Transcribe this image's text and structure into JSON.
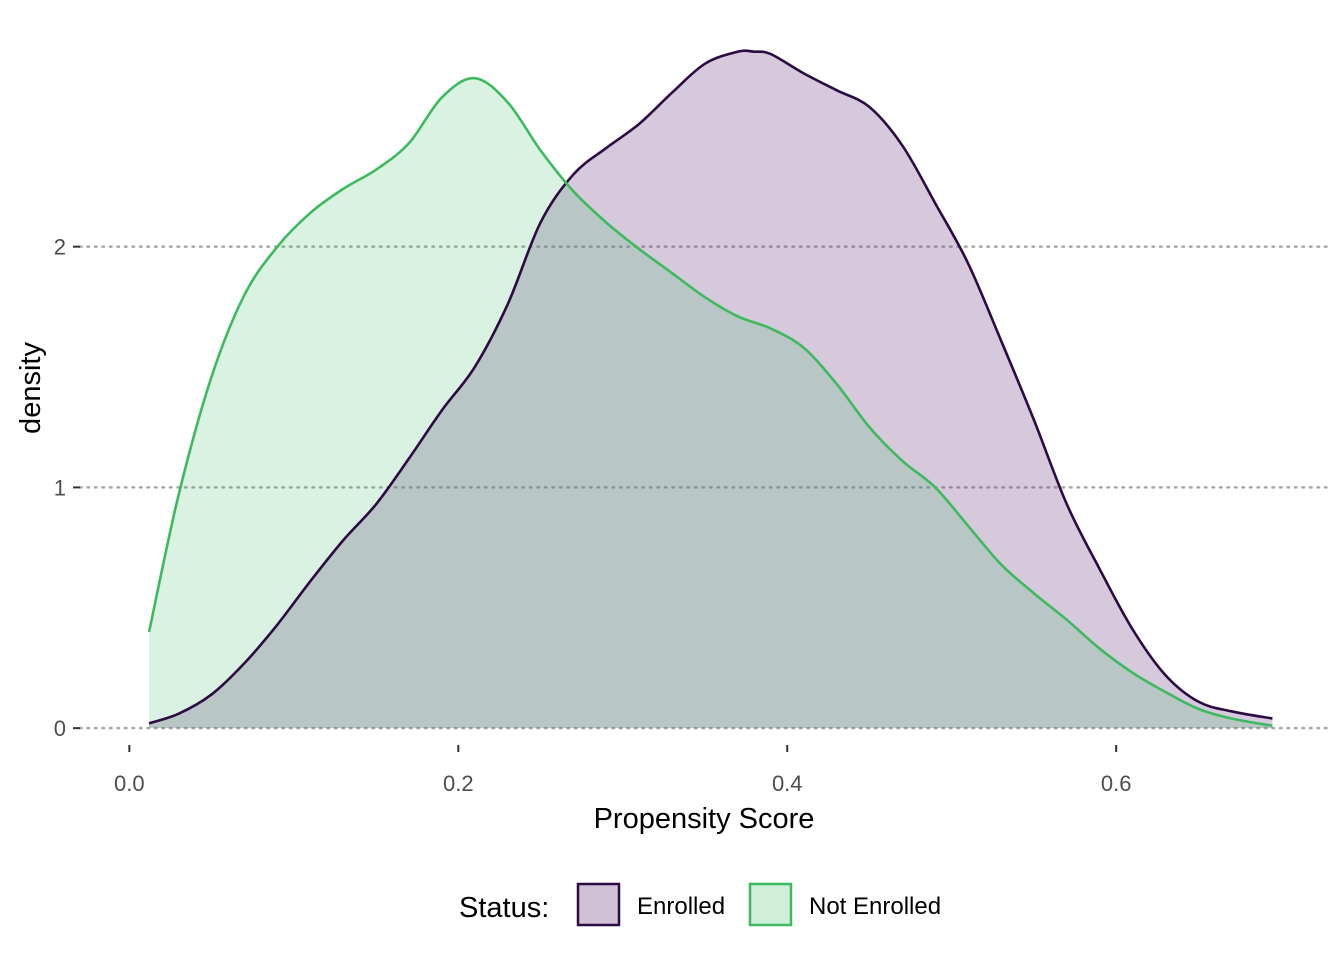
{
  "chart_data": {
    "type": "area",
    "xlabel": "Propensity Score",
    "ylabel": "density",
    "xlim": [
      -0.03,
      0.73
    ],
    "ylim": [
      -0.07,
      2.9
    ],
    "x_ticks": [
      {
        "value": 0.0,
        "label": "0.0"
      },
      {
        "value": 0.2,
        "label": "0.2"
      },
      {
        "value": 0.4,
        "label": "0.4"
      },
      {
        "value": 0.6,
        "label": "0.6"
      }
    ],
    "y_ticks": [
      {
        "value": 0,
        "label": "0"
      },
      {
        "value": 1,
        "label": "1"
      },
      {
        "value": 2,
        "label": "2"
      }
    ],
    "grid": "horizontal dotted",
    "legend": {
      "title": "Status:",
      "position": "bottom",
      "entries": [
        "Enrolled",
        "Not Enrolled"
      ]
    },
    "series": [
      {
        "name": "Enrolled",
        "fill": "#7a4d8c",
        "fill_opacity": 0.3,
        "line": "#2d0a44",
        "x": [
          0.012,
          0.03,
          0.05,
          0.07,
          0.09,
          0.11,
          0.13,
          0.15,
          0.17,
          0.19,
          0.21,
          0.23,
          0.25,
          0.27,
          0.29,
          0.31,
          0.33,
          0.35,
          0.37,
          0.38,
          0.39,
          0.41,
          0.43,
          0.45,
          0.47,
          0.49,
          0.51,
          0.53,
          0.55,
          0.57,
          0.59,
          0.61,
          0.63,
          0.65,
          0.67,
          0.695
        ],
        "y": [
          0.02,
          0.06,
          0.14,
          0.27,
          0.43,
          0.61,
          0.78,
          0.93,
          1.12,
          1.32,
          1.5,
          1.76,
          2.1,
          2.3,
          2.41,
          2.51,
          2.64,
          2.76,
          2.81,
          2.81,
          2.8,
          2.72,
          2.65,
          2.58,
          2.42,
          2.18,
          1.93,
          1.61,
          1.28,
          0.93,
          0.66,
          0.41,
          0.22,
          0.11,
          0.07,
          0.04
        ]
      },
      {
        "name": "Not Enrolled",
        "fill": "#3fbf6e",
        "fill_opacity": 0.2,
        "line": "#3dba5e",
        "x": [
          0.012,
          0.03,
          0.05,
          0.07,
          0.09,
          0.11,
          0.13,
          0.15,
          0.17,
          0.19,
          0.21,
          0.23,
          0.25,
          0.27,
          0.29,
          0.31,
          0.33,
          0.35,
          0.37,
          0.39,
          0.41,
          0.43,
          0.45,
          0.47,
          0.49,
          0.51,
          0.53,
          0.55,
          0.57,
          0.59,
          0.61,
          0.63,
          0.65,
          0.67,
          0.695
        ],
        "y": [
          0.4,
          0.97,
          1.46,
          1.8,
          2.0,
          2.14,
          2.24,
          2.32,
          2.43,
          2.62,
          2.7,
          2.6,
          2.4,
          2.23,
          2.1,
          1.99,
          1.89,
          1.79,
          1.71,
          1.66,
          1.58,
          1.43,
          1.25,
          1.11,
          1.0,
          0.84,
          0.68,
          0.56,
          0.45,
          0.33,
          0.23,
          0.15,
          0.08,
          0.04,
          0.01
        ]
      }
    ]
  }
}
